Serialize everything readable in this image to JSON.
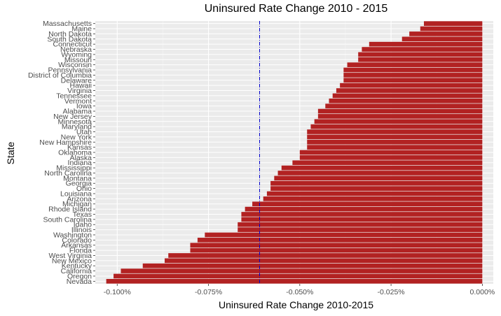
{
  "chart_data": {
    "type": "bar",
    "orientation": "horizontal",
    "title": "Uninsured Rate Change 2010 - 2015",
    "xlabel": "Uninsured Rate Change 2010-2015",
    "ylabel": "State",
    "xlim": [
      -0.0106,
      0.0003
    ],
    "x_ticks": [
      -0.01,
      -0.0075,
      -0.005,
      -0.0025,
      0.0
    ],
    "x_tick_labels": [
      "-0.100%",
      "-0.075%",
      "-0.050%",
      "-0.025%",
      "0.000%"
    ],
    "reference_line": {
      "value": -0.0061,
      "style": "dashed",
      "color": "#0000cc"
    },
    "grid": true,
    "bar_color": "#b22222",
    "categories": [
      "Massachusetts",
      "Maine",
      "North Dakota",
      "South Dakota",
      "Connecticut",
      "Nebraska",
      "Wyoming",
      "Missouri",
      "Wisconsin",
      "Pennsylvania",
      "District of Columbia",
      "Delaware",
      "Hawaii",
      "Virginia",
      "Tennessee",
      "Vermont",
      "Iowa",
      "Alabama",
      "New Jersey",
      "Minnesota",
      "Maryland",
      "Utah",
      "New York",
      "New Hampshire",
      "Kansas",
      "Oklahoma",
      "Alaska",
      "Indiana",
      "Mississippi",
      "North Carolina",
      "Montana",
      "Georgia",
      "Ohio",
      "Louisiana",
      "Arizona",
      "Michigan",
      "Rhode Island",
      "Texas",
      "South Carolina",
      "Idaho",
      "Illinois",
      "Washington",
      "Colorado",
      "Arkansas",
      "Florida",
      "West Virginia",
      "New Mexico",
      "Kentucky",
      "California",
      "Oregon",
      "Nevada"
    ],
    "values": [
      -0.0016,
      -0.0017,
      -0.002,
      -0.0022,
      -0.0031,
      -0.0033,
      -0.0034,
      -0.0034,
      -0.0037,
      -0.0038,
      -0.0038,
      -0.0038,
      -0.0039,
      -0.004,
      -0.0041,
      -0.0042,
      -0.0043,
      -0.0045,
      -0.0045,
      -0.0046,
      -0.0047,
      -0.0048,
      -0.0048,
      -0.0048,
      -0.0048,
      -0.005,
      -0.005,
      -0.0052,
      -0.0055,
      -0.0056,
      -0.0057,
      -0.0058,
      -0.0058,
      -0.0059,
      -0.006,
      -0.0063,
      -0.0065,
      -0.0066,
      -0.0066,
      -0.0067,
      -0.0067,
      -0.0076,
      -0.0078,
      -0.008,
      -0.008,
      -0.0086,
      -0.0087,
      -0.0093,
      -0.0099,
      -0.0101,
      -0.0103
    ]
  }
}
